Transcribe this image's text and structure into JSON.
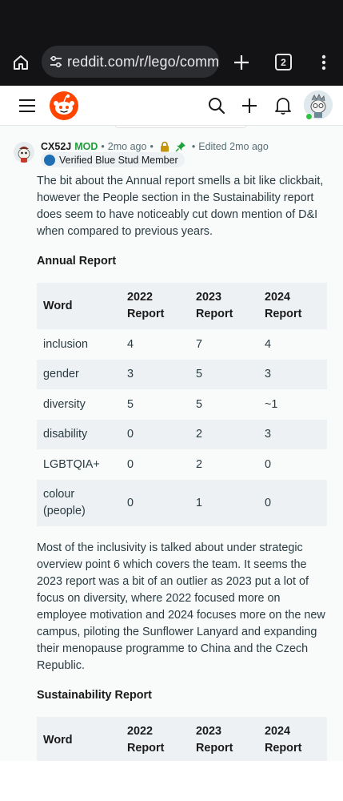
{
  "browser": {
    "url": "reddit.com/r/lego/comm",
    "tab_count": "2"
  },
  "comment": {
    "author": "CX52J",
    "mod_label": "MOD",
    "age": "2mo ago",
    "edited": "Edited 2mo ago",
    "flair": "Verified Blue Stud Member",
    "paragraph1": "The bit about the Annual report smells a bit like clickbait, however the People section in the Sustainability report does seem to have noticeably cut down mention of D&I when compared to previous years.",
    "annual_heading": "Annual Report",
    "paragraph2": "Most of the inclusivity is talked about under strategic overview point 6 which covers the team. It seems the 2023 report was a bit of an outlier as 2023 put a lot of focus on diversity, where 2022 focused more on employee motivation and 2024 focuses more on the new campus, piloting the Sunflower Lanyard and expanding their menopause programme to China and the Czech Republic.",
    "sustainability_heading": "Sustainability Report"
  },
  "annual_table": {
    "headers": [
      "Word",
      "2022 Report",
      "2023 Report",
      "2024 Report"
    ],
    "rows": [
      [
        "inclusion",
        "4",
        "7",
        "4"
      ],
      [
        "gender",
        "3",
        "5",
        "3"
      ],
      [
        "diversity",
        "5",
        "5",
        "~1"
      ],
      [
        "disability",
        "0",
        "2",
        "3"
      ],
      [
        "LGBTQIA+",
        "0",
        "2",
        "0"
      ],
      [
        "colour (people)",
        "0",
        "1",
        "0"
      ]
    ]
  },
  "sustainability_table": {
    "headers": [
      "Word",
      "2022 Report",
      "2023 Report",
      "2024 Report"
    ]
  },
  "icons": {
    "home": "home-icon",
    "tune": "tune-icon",
    "new_tab": "plus-icon",
    "menu": "more-vert-icon",
    "hamburger": "hamburger-icon",
    "logo": "reddit-logo",
    "search": "search-icon",
    "create": "create-post-icon",
    "notifications": "bell-icon",
    "lock": "lock-icon",
    "pin": "pin-icon"
  },
  "colors": {
    "mod": "#1ea03a",
    "online": "#2ec246",
    "reddit_orange": "#ff4500",
    "chrome_bg": "#131315"
  }
}
